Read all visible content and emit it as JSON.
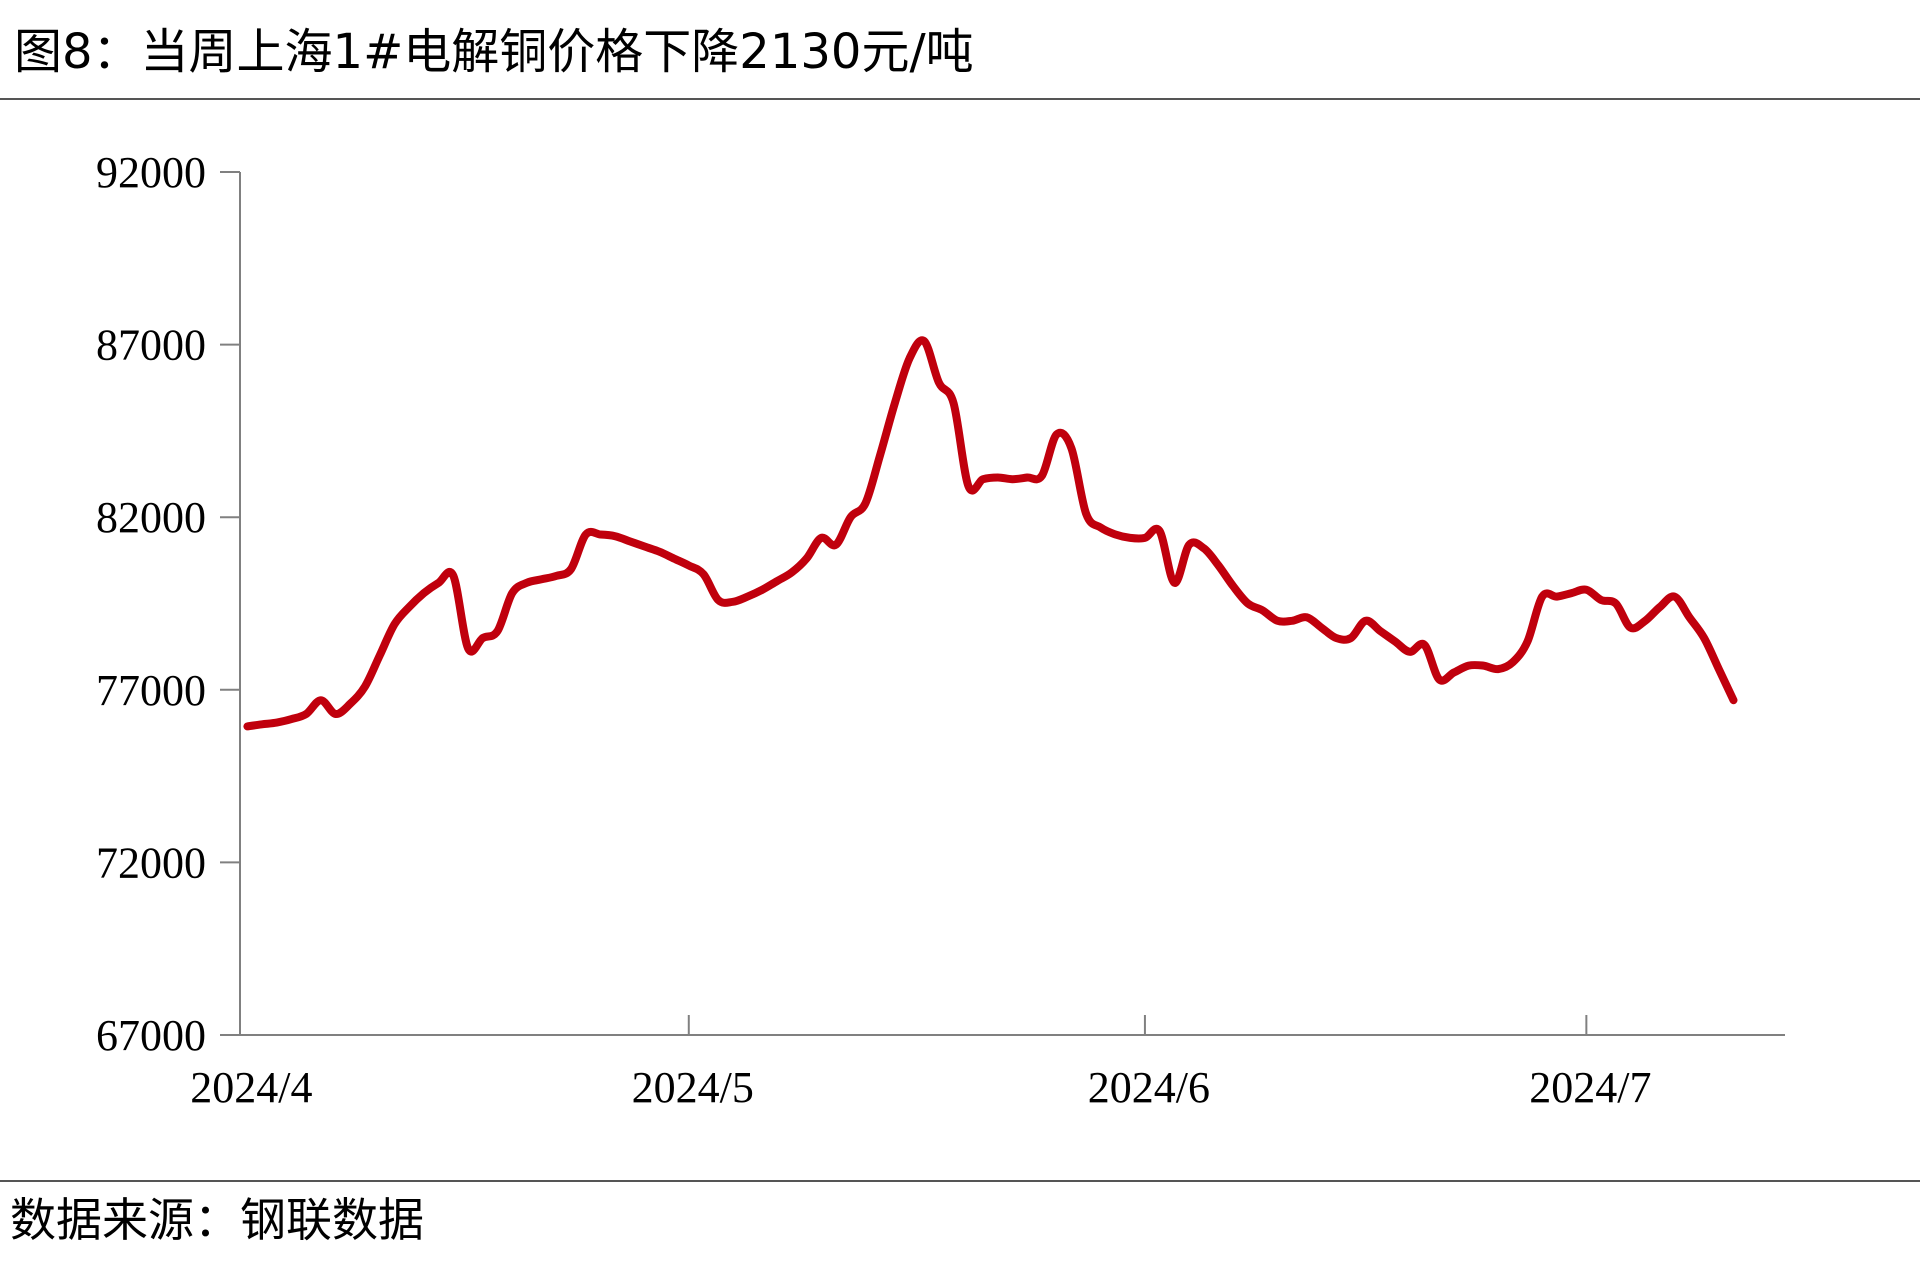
{
  "figure": {
    "title": "图8：当周上海1#电解铜价格下降2130元/吨",
    "source": "数据来源：钢联数据"
  },
  "colors": {
    "series": "#c0000d",
    "axis": "#808080",
    "text": "#000000"
  },
  "chart_data": {
    "type": "line",
    "title": "图8：当周上海1#电解铜价格下降2130元/吨",
    "xlabel": "",
    "ylabel": "",
    "ylim": [
      67000,
      92000
    ],
    "y_ticks": [
      67000,
      72000,
      77000,
      82000,
      87000,
      92000
    ],
    "x_tick_labels": [
      "2024/4",
      "2024/5",
      "2024/6",
      "2024/7"
    ],
    "x_tick_dates": [
      "2024-04-01",
      "2024-05-01",
      "2024-06-01",
      "2024-07-01"
    ],
    "grid": false,
    "legend": "none",
    "series": [
      {
        "color": "#c0000d",
        "points": [
          [
            "2024-04-01",
            75940
          ],
          [
            "2024-04-02",
            76000
          ],
          [
            "2024-04-03",
            76050
          ],
          [
            "2024-04-04",
            76150
          ],
          [
            "2024-04-05",
            76300
          ],
          [
            "2024-04-06",
            76700
          ],
          [
            "2024-04-07",
            76300
          ],
          [
            "2024-04-08",
            76600
          ],
          [
            "2024-04-09",
            77100
          ],
          [
            "2024-04-10",
            78000
          ],
          [
            "2024-04-11",
            78900
          ],
          [
            "2024-04-12",
            79400
          ],
          [
            "2024-04-13",
            79800
          ],
          [
            "2024-04-14",
            80100
          ],
          [
            "2024-04-15",
            80300
          ],
          [
            "2024-04-16",
            78200
          ],
          [
            "2024-04-17",
            78500
          ],
          [
            "2024-04-18",
            78700
          ],
          [
            "2024-04-19",
            79800
          ],
          [
            "2024-04-20",
            80100
          ],
          [
            "2024-04-21",
            80200
          ],
          [
            "2024-04-22",
            80300
          ],
          [
            "2024-04-23",
            80500
          ],
          [
            "2024-04-24",
            81500
          ],
          [
            "2024-04-25",
            81500
          ],
          [
            "2024-04-26",
            81450
          ],
          [
            "2024-04-27",
            81300
          ],
          [
            "2024-04-28",
            81150
          ],
          [
            "2024-04-29",
            81000
          ],
          [
            "2024-04-30",
            80800
          ],
          [
            "2024-05-01",
            80600
          ],
          [
            "2024-05-02",
            80350
          ],
          [
            "2024-05-03",
            79600
          ],
          [
            "2024-05-04",
            79550
          ],
          [
            "2024-05-05",
            79700
          ],
          [
            "2024-05-06",
            79900
          ],
          [
            "2024-05-07",
            80150
          ],
          [
            "2024-05-08",
            80400
          ],
          [
            "2024-05-09",
            80800
          ],
          [
            "2024-05-10",
            81400
          ],
          [
            "2024-05-11",
            81200
          ],
          [
            "2024-05-12",
            82000
          ],
          [
            "2024-05-13",
            82400
          ],
          [
            "2024-05-14",
            83800
          ],
          [
            "2024-05-15",
            85300
          ],
          [
            "2024-05-16",
            86600
          ],
          [
            "2024-05-17",
            87100
          ],
          [
            "2024-05-18",
            85900
          ],
          [
            "2024-05-19",
            85300
          ],
          [
            "2024-05-20",
            82900
          ],
          [
            "2024-05-21",
            83100
          ],
          [
            "2024-05-22",
            83150
          ],
          [
            "2024-05-23",
            83100
          ],
          [
            "2024-05-24",
            83150
          ],
          [
            "2024-05-25",
            83200
          ],
          [
            "2024-05-26",
            84400
          ],
          [
            "2024-05-27",
            84000
          ],
          [
            "2024-05-28",
            82100
          ],
          [
            "2024-05-29",
            81700
          ],
          [
            "2024-05-30",
            81500
          ],
          [
            "2024-05-31",
            81400
          ],
          [
            "2024-06-01",
            81400
          ],
          [
            "2024-06-02",
            81600
          ],
          [
            "2024-06-03",
            80100
          ],
          [
            "2024-06-04",
            81200
          ],
          [
            "2024-06-05",
            81100
          ],
          [
            "2024-06-06",
            80600
          ],
          [
            "2024-06-07",
            80000
          ],
          [
            "2024-06-08",
            79500
          ],
          [
            "2024-06-09",
            79300
          ],
          [
            "2024-06-10",
            79000
          ],
          [
            "2024-06-11",
            79000
          ],
          [
            "2024-06-12",
            79100
          ],
          [
            "2024-06-13",
            78800
          ],
          [
            "2024-06-14",
            78500
          ],
          [
            "2024-06-15",
            78500
          ],
          [
            "2024-06-16",
            79000
          ],
          [
            "2024-06-17",
            78700
          ],
          [
            "2024-06-18",
            78400
          ],
          [
            "2024-06-19",
            78100
          ],
          [
            "2024-06-20",
            78300
          ],
          [
            "2024-06-21",
            77300
          ],
          [
            "2024-06-22",
            77500
          ],
          [
            "2024-06-23",
            77700
          ],
          [
            "2024-06-24",
            77700
          ],
          [
            "2024-06-25",
            77600
          ],
          [
            "2024-06-26",
            77800
          ],
          [
            "2024-06-27",
            78400
          ],
          [
            "2024-06-28",
            79700
          ],
          [
            "2024-06-29",
            79700
          ],
          [
            "2024-06-30",
            79800
          ],
          [
            "2024-07-01",
            79900
          ],
          [
            "2024-07-02",
            79600
          ],
          [
            "2024-07-03",
            79500
          ],
          [
            "2024-07-04",
            78800
          ],
          [
            "2024-07-05",
            79000
          ],
          [
            "2024-07-06",
            79400
          ],
          [
            "2024-07-07",
            79700
          ],
          [
            "2024-07-08",
            79100
          ],
          [
            "2024-07-09",
            78500
          ],
          [
            "2024-07-10",
            77600
          ],
          [
            "2024-07-11",
            76700
          ]
        ]
      }
    ]
  }
}
